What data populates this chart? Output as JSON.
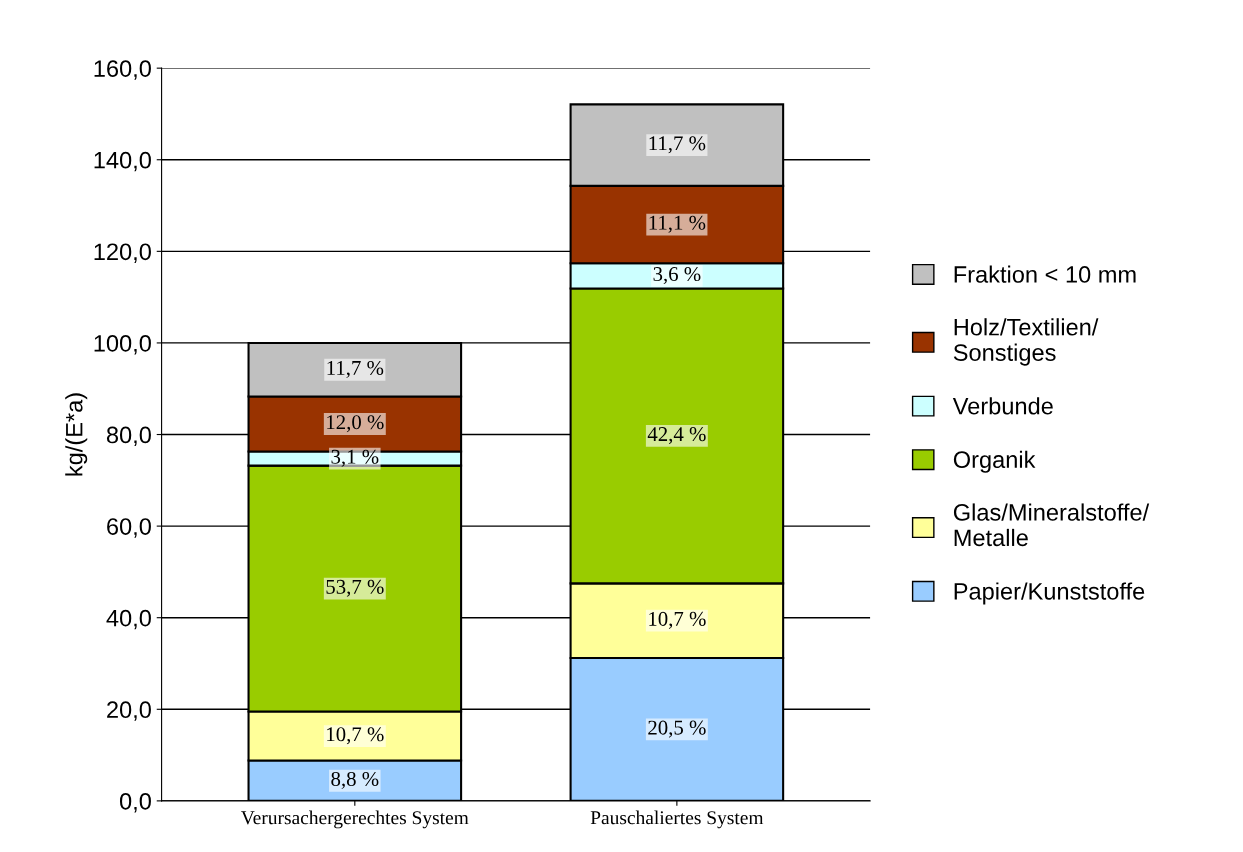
{
  "chart_data": {
    "type": "bar",
    "stacked": true,
    "ylabel": "kg/(E*a)",
    "categories": [
      "Verursachergerechtes System",
      "Pauschaliertes System"
    ],
    "series": [
      {
        "name": "Papier/Kunststoffe",
        "color": "#99ccff",
        "values": [
          8.8,
          31.2
        ]
      },
      {
        "name": "Glas/Mineralstoffe/\nMetalle",
        "color": "#ffff99",
        "values": [
          10.7,
          16.3
        ]
      },
      {
        "name": "Organik",
        "color": "#99cc00",
        "values": [
          53.7,
          64.4
        ]
      },
      {
        "name": "Verbunde",
        "color": "#ccffff",
        "values": [
          3.1,
          5.5
        ]
      },
      {
        "name": "Holz/Textilien/\nSonstiges",
        "color": "#993300",
        "values": [
          12.0,
          16.9
        ]
      },
      {
        "name": "Fraktion < 10 mm",
        "color": "#c0c0c0",
        "values": [
          11.7,
          17.8
        ]
      }
    ],
    "annotations": [
      "8,8 %",
      "20,5 %",
      "10,7 %",
      "10,7 %",
      "53,7 %",
      "42,4 %",
      "3,1 %",
      "3,6 %",
      "12,0 %",
      "11,1 %",
      "11,7 %",
      "11,7 %"
    ],
    "ylim": [
      0,
      160
    ],
    "yticks": [
      {
        "value": 0,
        "label": "0,0"
      },
      {
        "value": 20,
        "label": "20,0"
      },
      {
        "value": 40,
        "label": "40,0"
      },
      {
        "value": 60,
        "label": "60,0"
      },
      {
        "value": 80,
        "label": "80,0"
      },
      {
        "value": 100,
        "label": "100,0"
      },
      {
        "value": 120,
        "label": "120,0"
      },
      {
        "value": 140,
        "label": "140,0"
      },
      {
        "value": 160,
        "label": "160,0"
      }
    ],
    "grid": "y",
    "legend": "right"
  }
}
